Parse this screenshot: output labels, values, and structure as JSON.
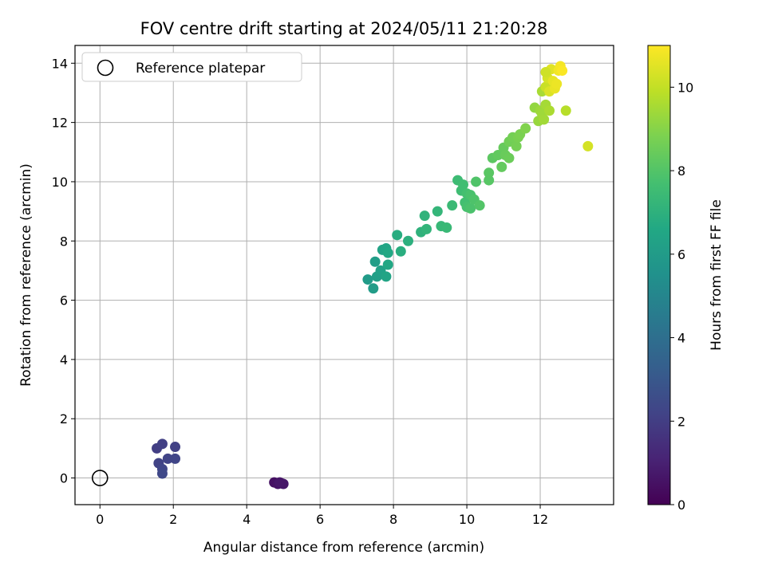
{
  "chart_data": {
    "type": "scatter",
    "title": "FOV centre drift starting at 2024/05/11 21:20:28",
    "xlabel": "Angular distance from reference (arcmin)",
    "ylabel": "Rotation from reference (arcmin)",
    "xlim": [
      -0.68,
      14.0
    ],
    "ylim": [
      -0.9,
      14.6
    ],
    "xticks": [
      0,
      2,
      4,
      6,
      8,
      10,
      12
    ],
    "yticks": [
      0,
      2,
      4,
      6,
      8,
      10,
      12,
      14
    ],
    "grid": true,
    "legend": {
      "placement": "top-left",
      "entries": [
        "Reference platepar"
      ]
    },
    "reference_point": {
      "x": 0,
      "y": 0,
      "label": "Reference platepar"
    },
    "colorbar": {
      "label": "Hours from first FF file",
      "colormap": "viridis",
      "range": [
        0,
        11
      ],
      "ticks": [
        0,
        2,
        4,
        6,
        8,
        10
      ]
    },
    "points": [
      [
        4.75,
        -0.15,
        0.5
      ],
      [
        4.85,
        -0.2,
        0.55
      ],
      [
        4.95,
        -0.18,
        0.6
      ],
      [
        5.0,
        -0.2,
        0.65
      ],
      [
        4.9,
        -0.15,
        0.7
      ],
      [
        1.55,
        1.0,
        2.0
      ],
      [
        1.7,
        1.15,
        2.05
      ],
      [
        2.05,
        1.05,
        2.1
      ],
      [
        1.6,
        0.5,
        2.15
      ],
      [
        1.85,
        0.65,
        2.2
      ],
      [
        2.05,
        0.65,
        2.25
      ],
      [
        1.7,
        0.3,
        2.3
      ],
      [
        1.7,
        0.15,
        2.35
      ],
      [
        7.3,
        6.7,
        6.0
      ],
      [
        7.45,
        6.4,
        6.05
      ],
      [
        7.5,
        7.3,
        6.1
      ],
      [
        7.55,
        6.8,
        6.15
      ],
      [
        7.65,
        7.0,
        6.25
      ],
      [
        7.7,
        7.7,
        6.35
      ],
      [
        7.8,
        6.8,
        6.4
      ],
      [
        7.8,
        7.75,
        6.45
      ],
      [
        7.85,
        7.2,
        6.55
      ],
      [
        7.85,
        7.6,
        6.6
      ],
      [
        8.1,
        8.2,
        6.8
      ],
      [
        8.2,
        7.65,
        6.85
      ],
      [
        8.4,
        8.0,
        6.95
      ],
      [
        8.75,
        8.3,
        7.05
      ],
      [
        8.85,
        8.85,
        7.1
      ],
      [
        8.9,
        8.4,
        7.15
      ],
      [
        9.2,
        9.0,
        7.2
      ],
      [
        9.3,
        8.5,
        7.3
      ],
      [
        9.45,
        8.45,
        7.35
      ],
      [
        9.6,
        9.2,
        7.4
      ],
      [
        9.75,
        10.05,
        7.5
      ],
      [
        9.85,
        9.7,
        7.55
      ],
      [
        9.9,
        9.9,
        7.6
      ],
      [
        9.95,
        9.3,
        7.65
      ],
      [
        10.0,
        9.6,
        7.7
      ],
      [
        10.0,
        9.15,
        7.75
      ],
      [
        10.1,
        9.55,
        7.8
      ],
      [
        10.1,
        9.1,
        7.85
      ],
      [
        10.2,
        9.4,
        7.9
      ],
      [
        10.25,
        10.0,
        7.95
      ],
      [
        10.35,
        9.2,
        8.0
      ],
      [
        10.6,
        10.05,
        8.1
      ],
      [
        10.6,
        10.3,
        8.15
      ],
      [
        10.7,
        10.8,
        8.2
      ],
      [
        10.85,
        10.9,
        8.3
      ],
      [
        10.95,
        10.5,
        8.35
      ],
      [
        11.0,
        11.15,
        8.4
      ],
      [
        11.05,
        10.9,
        8.45
      ],
      [
        11.15,
        10.8,
        8.5
      ],
      [
        11.15,
        11.35,
        8.6
      ],
      [
        11.25,
        11.5,
        8.65
      ],
      [
        11.35,
        11.2,
        8.7
      ],
      [
        11.4,
        11.5,
        8.75
      ],
      [
        11.45,
        11.6,
        8.8
      ],
      [
        11.6,
        11.8,
        8.9
      ],
      [
        11.85,
        12.5,
        9.2
      ],
      [
        11.95,
        12.05,
        9.3
      ],
      [
        12.0,
        12.4,
        9.35
      ],
      [
        12.05,
        12.3,
        9.4
      ],
      [
        12.1,
        12.1,
        9.45
      ],
      [
        12.15,
        12.6,
        9.5
      ],
      [
        12.05,
        13.05,
        9.55
      ],
      [
        12.25,
        12.4,
        9.6
      ],
      [
        12.7,
        12.4,
        9.8
      ],
      [
        13.3,
        11.2,
        10.3
      ],
      [
        12.15,
        13.2,
        10.1
      ],
      [
        12.2,
        13.5,
        10.3
      ],
      [
        12.25,
        13.05,
        10.4
      ],
      [
        12.3,
        13.8,
        10.5
      ],
      [
        12.35,
        13.4,
        10.6
      ],
      [
        12.4,
        13.15,
        10.65
      ],
      [
        12.45,
        13.3,
        10.7
      ],
      [
        12.5,
        13.75,
        10.8
      ],
      [
        12.55,
        13.9,
        10.85
      ],
      [
        12.6,
        13.75,
        10.95
      ],
      [
        12.15,
        13.7,
        10.2
      ]
    ]
  }
}
